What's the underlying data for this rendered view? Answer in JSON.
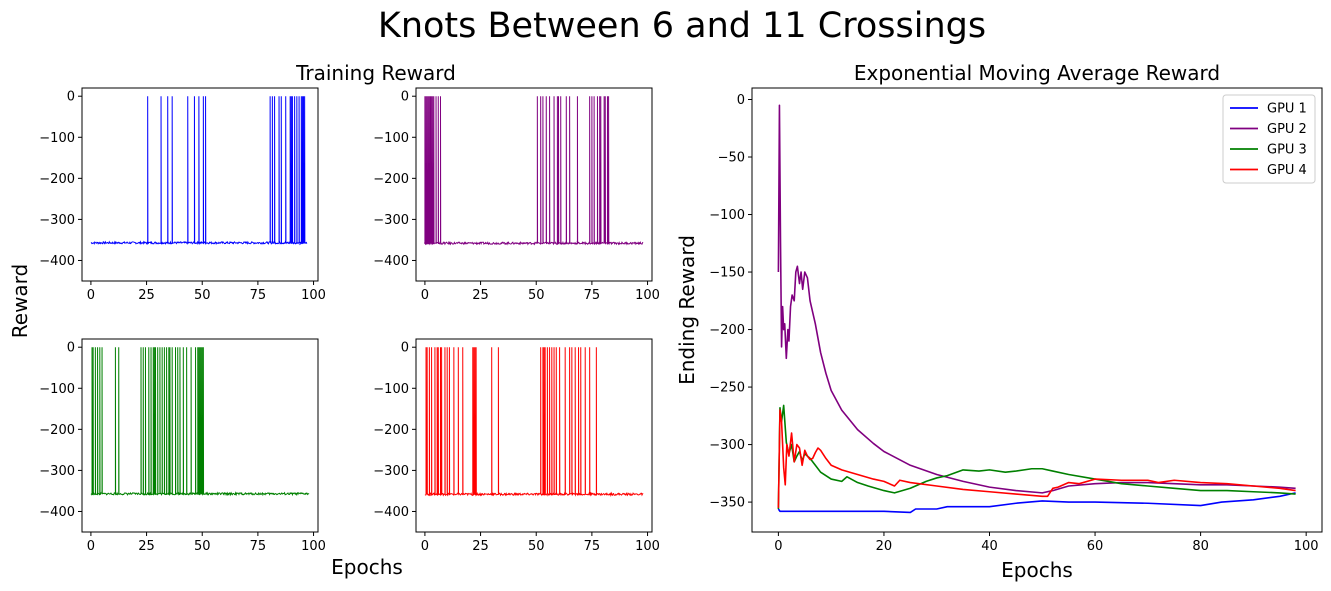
{
  "figure": {
    "suptitle": "Knots Between 6 and 11 Crossings",
    "left_title": "Training Reward",
    "shared_ylabel": "Reward",
    "shared_xlabel": "Epochs"
  },
  "chart_data": [
    {
      "type": "line",
      "name": "gpu1-training",
      "color": "#0000ff",
      "xlim": [
        -4,
        102
      ],
      "ylim": [
        -450,
        20
      ],
      "xticks": [
        0,
        25,
        50,
        75,
        100
      ],
      "yticks": [
        0,
        -100,
        -200,
        -300,
        -400
      ],
      "baseline": -357,
      "spikes_x": [
        25.5,
        31.5,
        34.5,
        36.5,
        43.5,
        46.5,
        48.5,
        50.5,
        51.5,
        80.5,
        81.5,
        82.5,
        84.5,
        85.5,
        87.5,
        89.5,
        90.0,
        90.5,
        91.5,
        92.5,
        93.5,
        94.5,
        95.0,
        95.5,
        96.0
      ],
      "spike_top": 0,
      "xmax": 97
    },
    {
      "type": "line",
      "name": "gpu2-training",
      "color": "#800080",
      "xlim": [
        -4,
        102
      ],
      "ylim": [
        -450,
        20
      ],
      "xticks": [
        0,
        25,
        50,
        75,
        100
      ],
      "yticks": [
        0,
        -100,
        -200,
        -300,
        -400
      ],
      "baseline": -358,
      "spikes_x": [
        0.0,
        0.5,
        1.0,
        1.5,
        2.0,
        2.5,
        3.0,
        3.5,
        4.0,
        5.0,
        6.0,
        7.0,
        50.5,
        52.0,
        53.0,
        54.5,
        56.0,
        58.0,
        59.5,
        60.0,
        61.0,
        63.5,
        65.0,
        68.5,
        74.0,
        75.0,
        76.0,
        77.5,
        78.5,
        79.0,
        80.5,
        81.0,
        82.0,
        82.5
      ],
      "spike_top": 0,
      "xmax": 98
    },
    {
      "type": "line",
      "name": "gpu3-training",
      "color": "#008000",
      "xlim": [
        -4,
        102
      ],
      "ylim": [
        -450,
        20
      ],
      "xticks": [
        0,
        25,
        50,
        75,
        100
      ],
      "yticks": [
        0,
        -100,
        -200,
        -300,
        -400
      ],
      "baseline": -357,
      "spikes_x": [
        0.5,
        1.0,
        2.0,
        3.0,
        4.0,
        5.0,
        11.0,
        12.5,
        22.5,
        23.5,
        24.5,
        26.0,
        27.0,
        28.0,
        28.5,
        29.0,
        30.0,
        31.0,
        32.0,
        33.0,
        34.0,
        35.0,
        35.5,
        36.5,
        38.0,
        39.0,
        40.0,
        41.5,
        43.0,
        45.0,
        47.0,
        48.0,
        48.5,
        49.0,
        49.5,
        50.0,
        50.5
      ],
      "spike_top": 0,
      "xmax": 98
    },
    {
      "type": "line",
      "name": "gpu4-training",
      "color": "#ff0000",
      "xlim": [
        -4,
        102
      ],
      "ylim": [
        -450,
        20
      ],
      "xticks": [
        0,
        25,
        50,
        75,
        100
      ],
      "yticks": [
        0,
        -100,
        -200,
        -300,
        -400
      ],
      "baseline": -358,
      "spikes_x": [
        0.5,
        1.0,
        2.0,
        3.0,
        4.5,
        5.5,
        6.0,
        7.0,
        7.5,
        9.0,
        10.0,
        11.0,
        13.0,
        15.0,
        17.0,
        21.5,
        22.0,
        22.5,
        23.0,
        30.0,
        33.0,
        52.0,
        53.0,
        53.5,
        54.0,
        55.0,
        56.0,
        57.0,
        58.0,
        59.0,
        60.5,
        63.0,
        65.0,
        66.0,
        67.5,
        69.0,
        70.0,
        72.0,
        74.0,
        77.0
      ],
      "spike_top": 0,
      "xmax": 98
    },
    {
      "type": "line",
      "name": "ema-reward",
      "title": "Exponential Moving Average Reward",
      "xlabel": "Epochs",
      "ylabel": "Ending Reward",
      "xlim": [
        -5,
        103
      ],
      "ylim": [
        -376,
        10
      ],
      "xticks": [
        0,
        20,
        40,
        60,
        80,
        100
      ],
      "yticks": [
        0,
        -50,
        -100,
        -150,
        -200,
        -250,
        -300,
        -350
      ],
      "legend_position": "upper right",
      "series": [
        {
          "name": "GPU 1",
          "color": "#0000ff",
          "x": [
            0,
            0.3,
            1,
            5,
            10,
            20,
            25,
            26,
            30,
            32,
            40,
            45,
            50,
            55,
            60,
            70,
            80,
            84,
            90,
            95,
            98
          ],
          "y": [
            -356,
            -358,
            -358,
            -358,
            -358,
            -358,
            -359,
            -356,
            -356,
            -354,
            -354,
            -351,
            -349,
            -350,
            -350,
            -351,
            -353,
            -350,
            -348,
            -345,
            -342
          ]
        },
        {
          "name": "GPU 2",
          "color": "#800080",
          "x": [
            0,
            0.2,
            0.4,
            0.6,
            0.8,
            1.0,
            1.2,
            1.5,
            1.8,
            2.0,
            2.3,
            2.6,
            3.0,
            3.3,
            3.6,
            4.0,
            4.3,
            4.6,
            5.0,
            5.5,
            6.0,
            6.5,
            7,
            8,
            9,
            10,
            12,
            15,
            18,
            20,
            25,
            30,
            35,
            40,
            45,
            50,
            52,
            55,
            60,
            65,
            70,
            75,
            80,
            85,
            90,
            95,
            98
          ],
          "y": [
            -150,
            -5,
            -123,
            -215,
            -180,
            -200,
            -195,
            -225,
            -200,
            -210,
            -180,
            -170,
            -175,
            -150,
            -145,
            -160,
            -150,
            -165,
            -150,
            -155,
            -175,
            -185,
            -195,
            -220,
            -238,
            -253,
            -270,
            -287,
            -299,
            -306,
            -318,
            -326,
            -332,
            -337,
            -340,
            -342,
            -340,
            -336,
            -334,
            -333,
            -333,
            -334,
            -335,
            -335,
            -336,
            -337,
            -338
          ]
        },
        {
          "name": "GPU 3",
          "color": "#008000",
          "x": [
            0,
            0.3,
            0.6,
            1,
            1.5,
            2,
            2.5,
            3,
            3.5,
            4,
            4.5,
            5,
            6,
            7,
            8,
            10,
            12,
            13,
            15,
            17,
            20,
            22,
            25,
            28,
            30,
            32,
            35,
            38,
            40,
            43,
            45,
            48,
            50,
            52,
            55,
            60,
            65,
            70,
            75,
            80,
            85,
            90,
            95,
            98
          ],
          "y": [
            -356,
            -268,
            -280,
            -266,
            -298,
            -308,
            -300,
            -315,
            -310,
            -306,
            -314,
            -308,
            -312,
            -318,
            -324,
            -330,
            -332,
            -328,
            -333,
            -336,
            -340,
            -342,
            -338,
            -332,
            -329,
            -327,
            -322,
            -323,
            -322,
            -324,
            -323,
            -321,
            -321,
            -323,
            -326,
            -330,
            -334,
            -336,
            -338,
            -340,
            -340,
            -341,
            -342,
            -343
          ]
        },
        {
          "name": "GPU 4",
          "color": "#ff0000",
          "x": [
            0,
            0.3,
            0.6,
            1,
            1.3,
            1.6,
            2,
            2.5,
            3,
            3.5,
            4,
            4.5,
            5,
            5.5,
            6,
            6.5,
            7,
            7.5,
            8,
            9,
            10,
            12,
            15,
            18,
            20,
            22,
            23,
            25,
            30,
            35,
            40,
            45,
            50,
            51,
            52,
            53,
            55,
            57,
            60,
            65,
            70,
            72,
            75,
            80,
            85,
            90,
            95,
            98
          ],
          "y": [
            -355,
            -270,
            -280,
            -320,
            -335,
            -300,
            -310,
            -290,
            -315,
            -300,
            -303,
            -318,
            -305,
            -310,
            -313,
            -312,
            -307,
            -303,
            -305,
            -312,
            -318,
            -322,
            -326,
            -330,
            -332,
            -336,
            -331,
            -333,
            -336,
            -339,
            -341,
            -343,
            -345,
            -345,
            -338,
            -337,
            -333,
            -334,
            -330,
            -331,
            -331,
            -333,
            -331,
            -333,
            -334,
            -336,
            -338,
            -340
          ]
        }
      ]
    }
  ]
}
